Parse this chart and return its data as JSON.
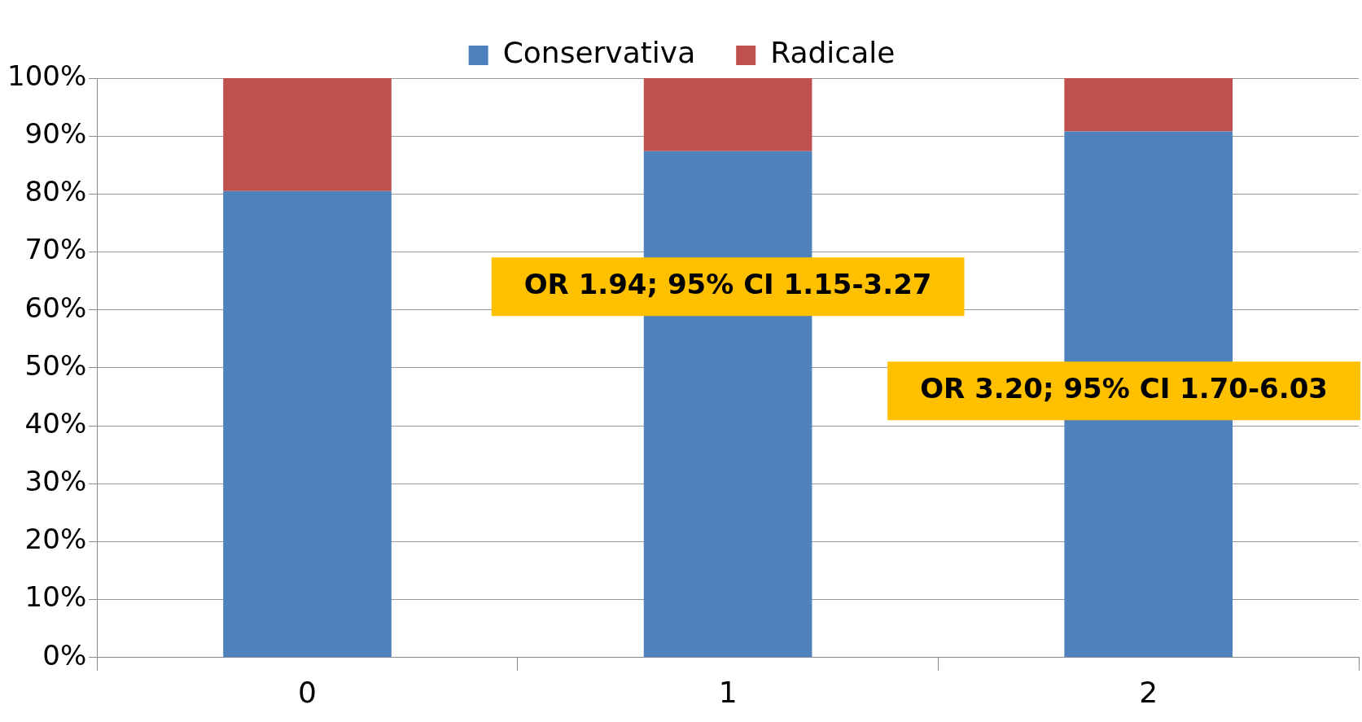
{
  "chart_data": {
    "type": "bar",
    "stacked": true,
    "categories": [
      "0",
      "1",
      "2"
    ],
    "series": [
      {
        "name": "Conservativa",
        "color": "#4f81bd",
        "values": [
          80.5,
          87.4,
          90.8
        ]
      },
      {
        "name": "Radicale",
        "color": "#c0504d",
        "values": [
          19.5,
          12.6,
          9.2
        ]
      }
    ],
    "ylim": [
      0,
      100
    ],
    "yticks": [
      {
        "value": 0,
        "label": "0%"
      },
      {
        "value": 10,
        "label": "10%"
      },
      {
        "value": 20,
        "label": "20%"
      },
      {
        "value": 30,
        "label": "30%"
      },
      {
        "value": 40,
        "label": "40%"
      },
      {
        "value": 50,
        "label": "50%"
      },
      {
        "value": 60,
        "label": "60%"
      },
      {
        "value": 70,
        "label": "70%"
      },
      {
        "value": 80,
        "label": "80%"
      },
      {
        "value": 90,
        "label": "90%"
      },
      {
        "value": 100,
        "label": "100%"
      }
    ],
    "grid": "y",
    "legend": "top",
    "annotations": [
      "OR 1.94; 95% CI 1.15-3.27",
      "OR 3.20; 95% CI 1.70-6.03"
    ]
  }
}
